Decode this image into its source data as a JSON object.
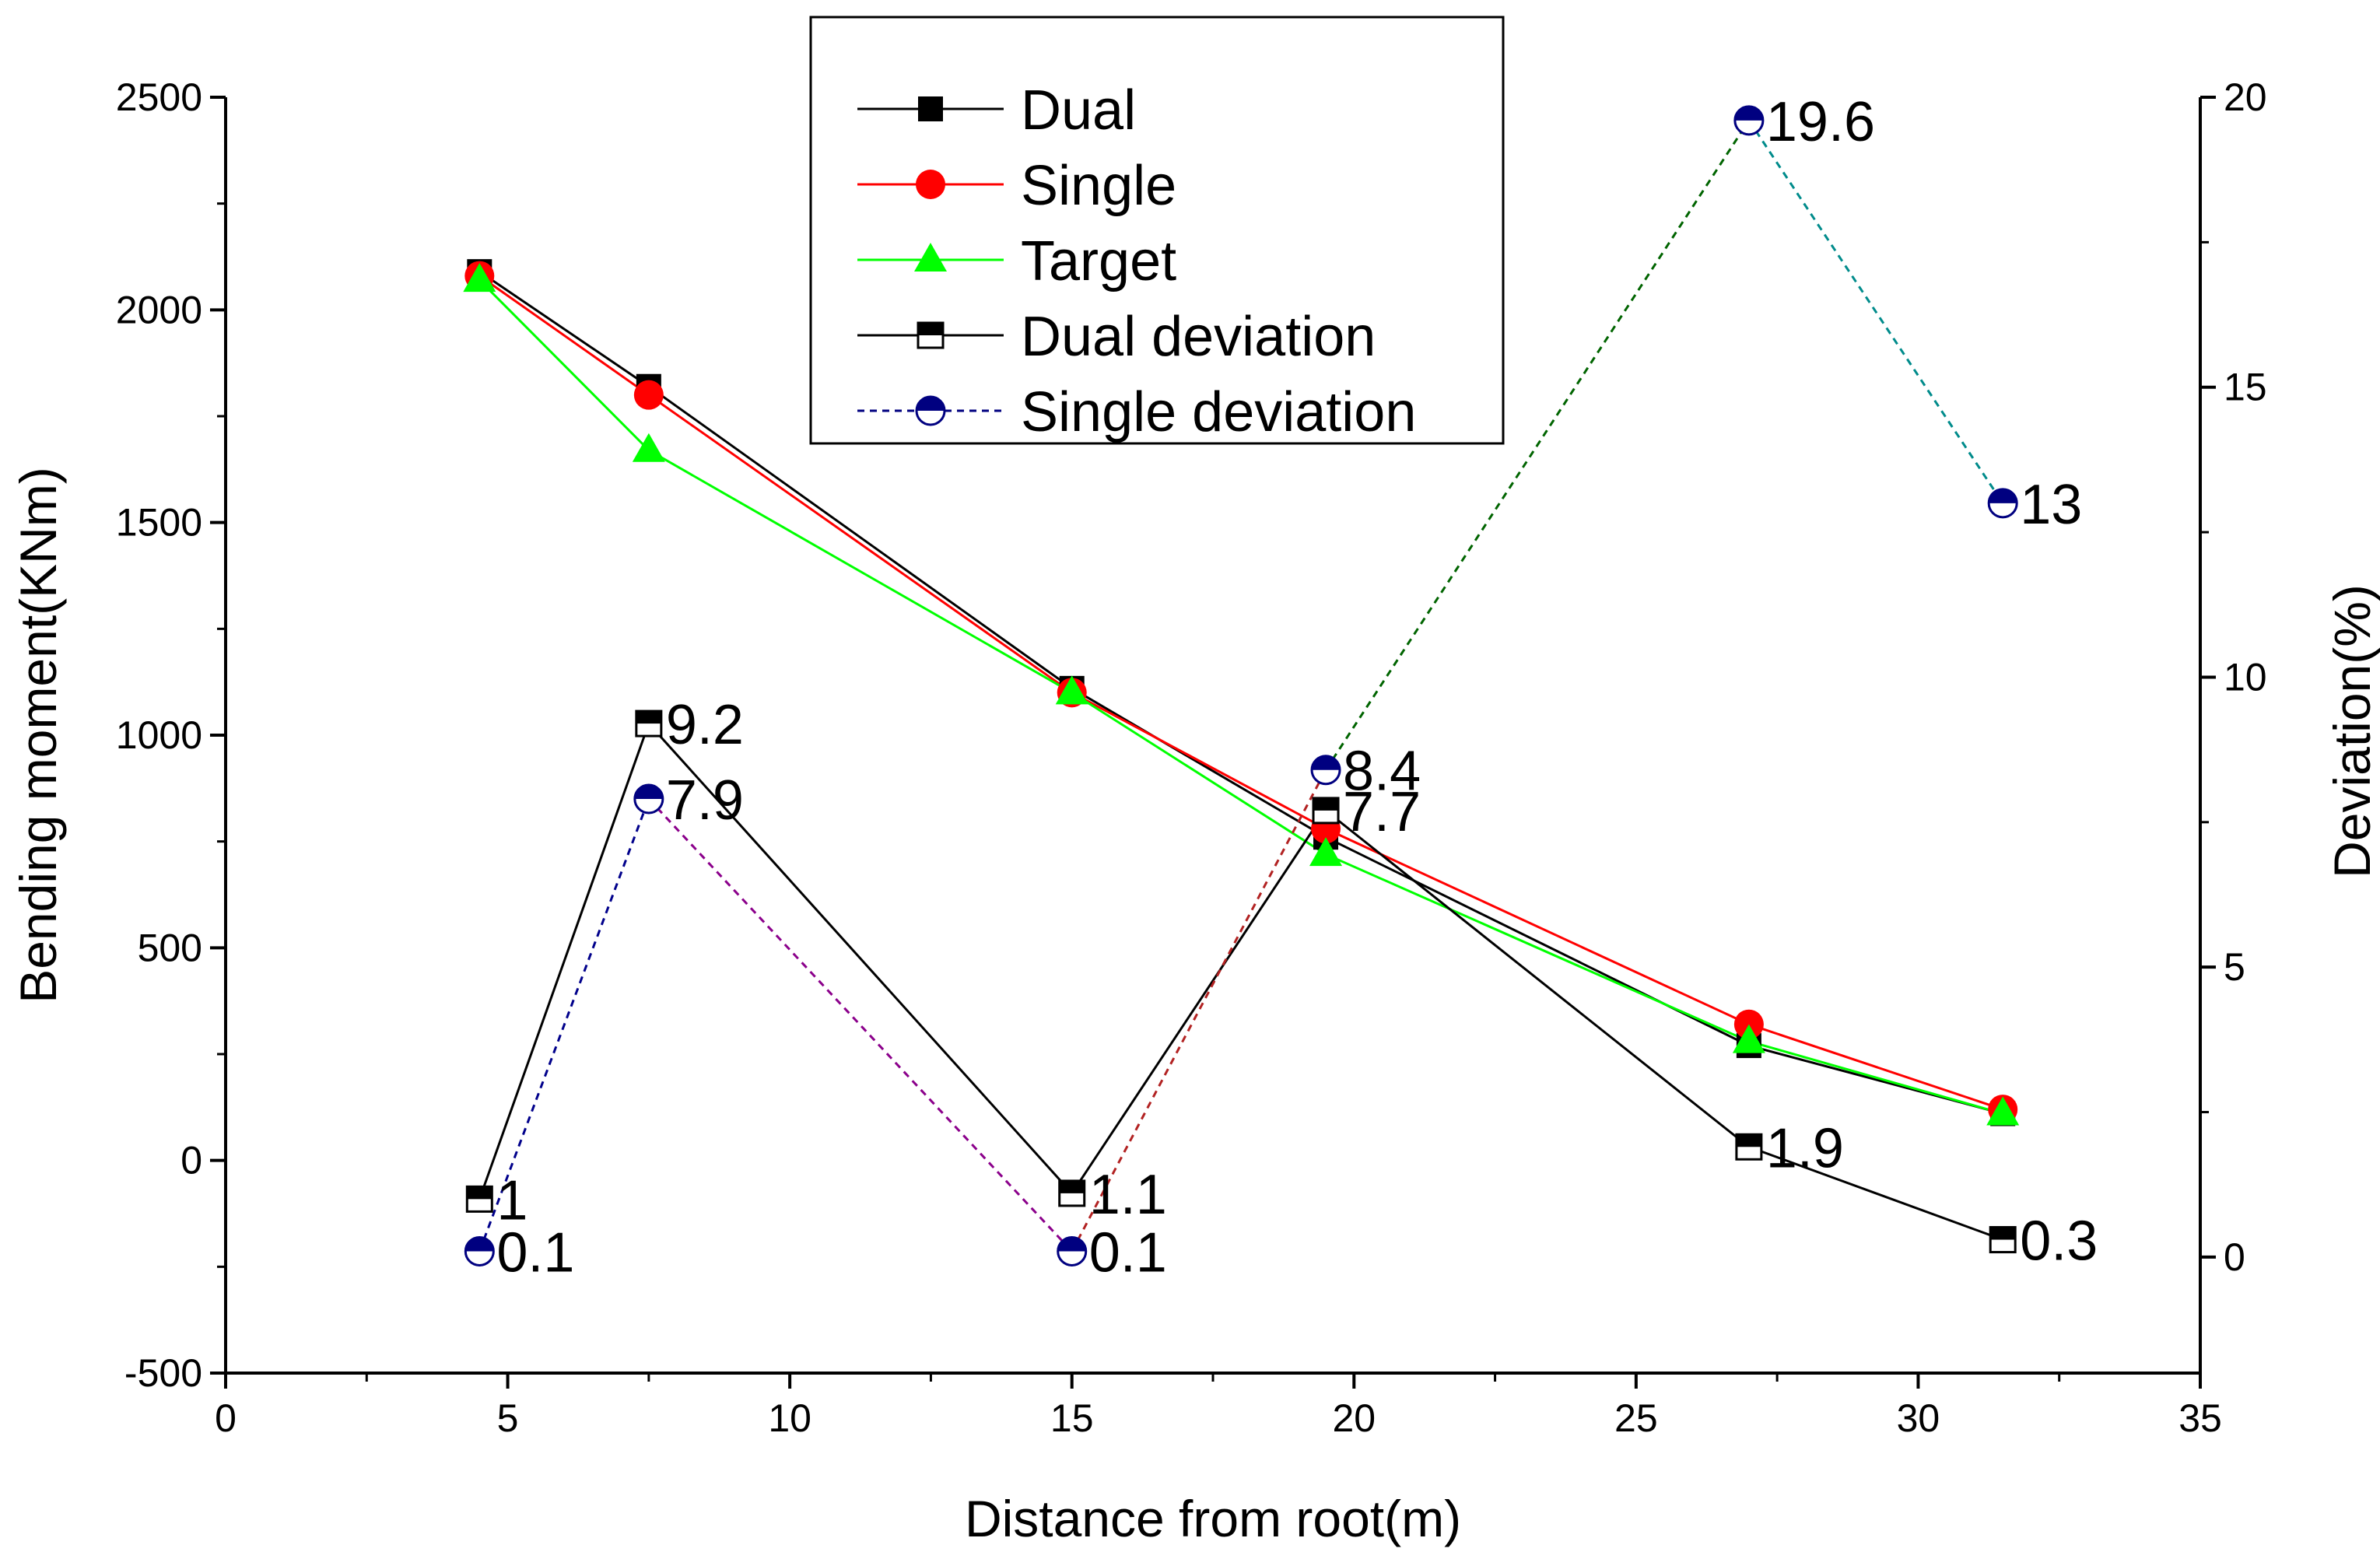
{
  "chart_data": {
    "type": "line",
    "title": "",
    "xlabel": "Distance from root(m)",
    "ylabel": "Bending moment(KNm)",
    "y2label": "Deviation(%)",
    "xlim": [
      0,
      35
    ],
    "ylim": [
      -500,
      2500
    ],
    "y2lim": [
      -2,
      20
    ],
    "xticks": [
      0,
      5,
      10,
      15,
      20,
      25,
      30,
      35
    ],
    "yticks": [
      -500,
      0,
      500,
      1000,
      1500,
      2000,
      2500
    ],
    "y2ticks": [
      0,
      5,
      10,
      15,
      20
    ],
    "grid": false,
    "legend_position": "top-center",
    "series": [
      {
        "name": "Dual",
        "axis": "left",
        "color": "#000000",
        "marker": "square",
        "x": [
          4.5,
          7.5,
          15,
          19.5,
          27,
          31.5
        ],
        "values": [
          2090,
          1820,
          1110,
          760,
          270,
          110
        ]
      },
      {
        "name": "Single",
        "axis": "left",
        "color": "#ff0000",
        "marker": "circle",
        "x": [
          4.5,
          7.5,
          15,
          19.5,
          27,
          31.5
        ],
        "values": [
          2080,
          1800,
          1100,
          780,
          320,
          120
        ]
      },
      {
        "name": "Target",
        "axis": "left",
        "color": "#00ff00",
        "marker": "triangle",
        "x": [
          4.5,
          7.5,
          15,
          19.5,
          27,
          31.5
        ],
        "values": [
          2070,
          1670,
          1100,
          720,
          280,
          110
        ]
      },
      {
        "name": "Dual deviation",
        "axis": "right",
        "color": "#000000",
        "marker": "half-square",
        "x": [
          4.5,
          7.5,
          15,
          19.5,
          27,
          31.5
        ],
        "values": [
          1,
          9.2,
          1.1,
          7.7,
          1.9,
          0.3
        ],
        "labels": [
          "1",
          "9.2",
          "1.1",
          "7.7",
          "1.9",
          "0.3"
        ]
      },
      {
        "name": "Single deviation",
        "axis": "right",
        "color": "#000080",
        "marker": "half-circle",
        "dashed": true,
        "segment_colors": [
          "#00008b",
          "#8b008b",
          "#b22222",
          "#006400",
          "#008b8b"
        ],
        "x": [
          4.5,
          7.5,
          15,
          19.5,
          27,
          31.5
        ],
        "values": [
          0.1,
          7.9,
          0.1,
          8.4,
          19.6,
          13
        ],
        "labels": [
          "0.1",
          "7.9",
          "0.1",
          "8.4",
          "19.6",
          "13"
        ]
      }
    ]
  }
}
